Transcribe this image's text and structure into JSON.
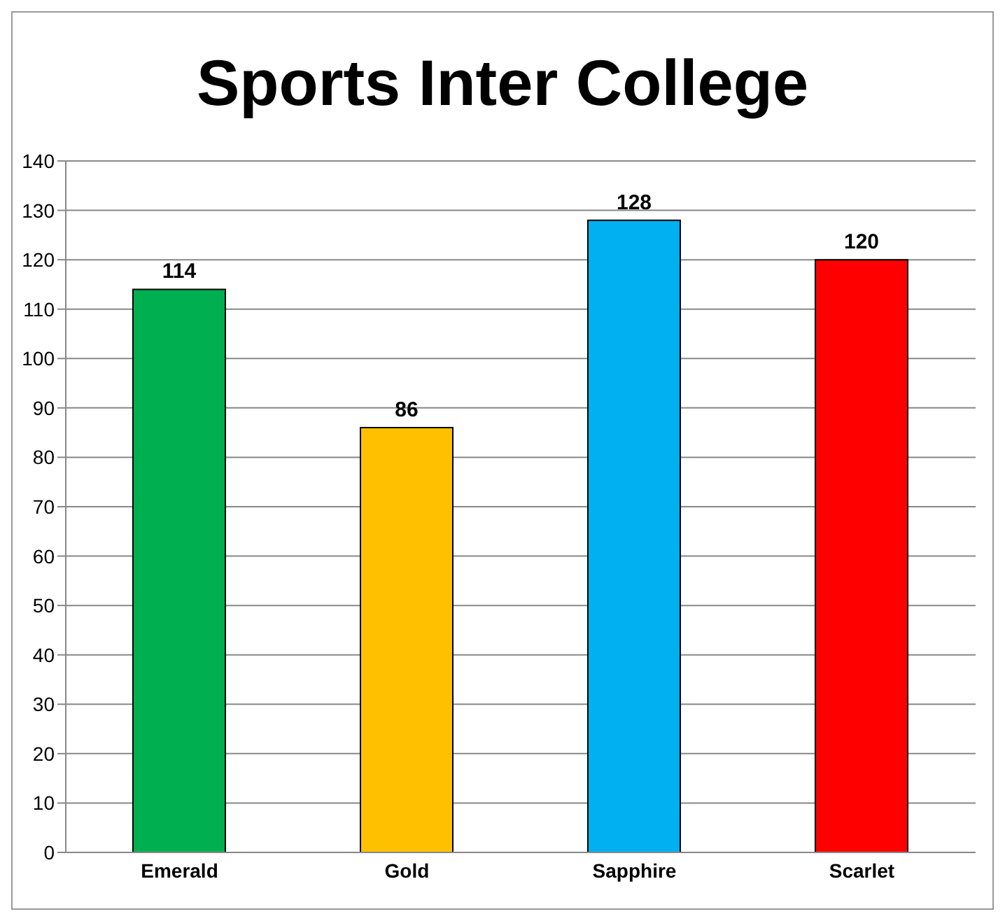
{
  "chart_data": {
    "type": "bar",
    "title": "Sports Inter College",
    "categories": [
      "Emerald",
      "Gold",
      "Sapphire",
      "Scarlet"
    ],
    "values": [
      114,
      86,
      128,
      120
    ],
    "colors": [
      "#00b050",
      "#ffc000",
      "#00b0f0",
      "#ff0000"
    ],
    "ylim": [
      0,
      140
    ],
    "yticks": [
      0,
      10,
      20,
      30,
      40,
      50,
      60,
      70,
      80,
      90,
      100,
      110,
      120,
      130,
      140
    ],
    "grid": "y",
    "data_labels": true
  }
}
